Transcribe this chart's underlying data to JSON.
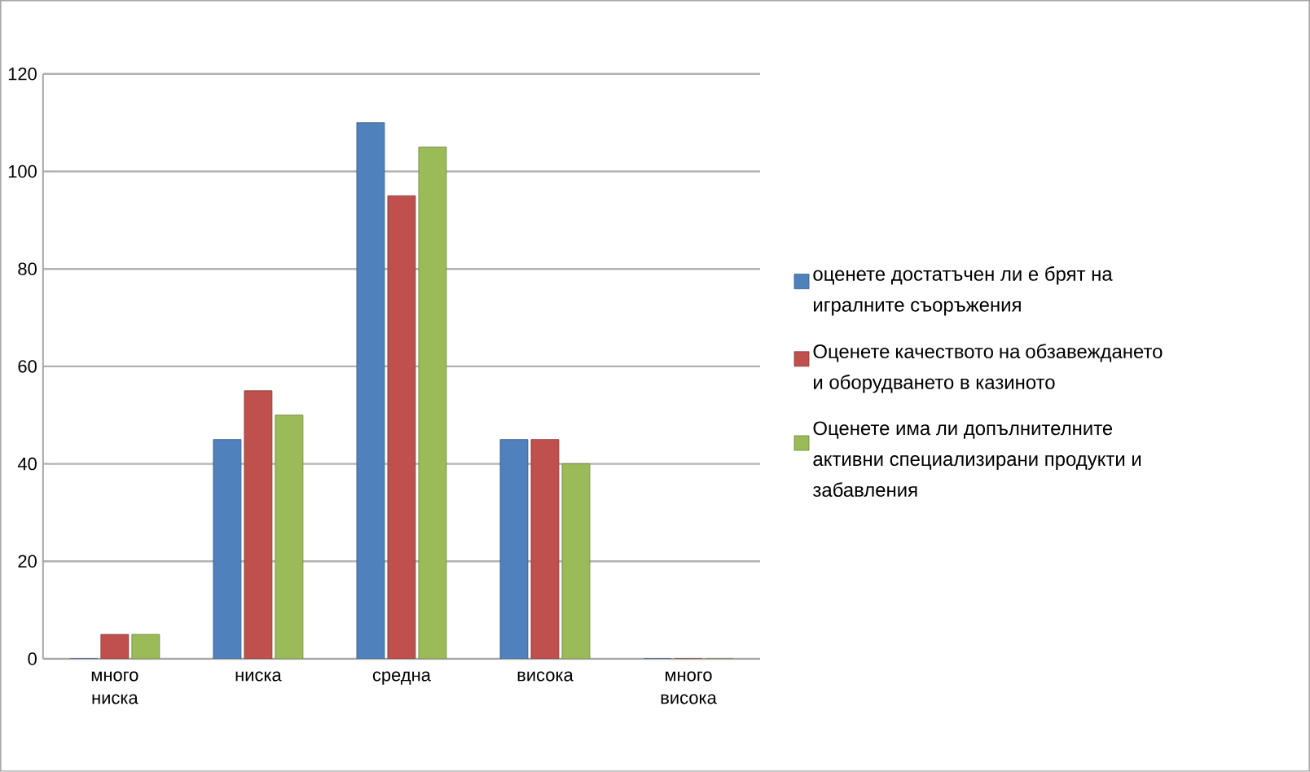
{
  "chart_data": {
    "type": "bar",
    "categories": [
      "много ниска",
      "ниска",
      "средна",
      "висока",
      "много висока"
    ],
    "series": [
      {
        "name": "оценете достатъчен ли е брят на игралните съоръжения",
        "color": "#4f81bd",
        "values": [
          0,
          45,
          110,
          45,
          0
        ]
      },
      {
        "name": "Оценете качеството на обзавеждането и оборудването в казиното",
        "color": "#c0504d",
        "values": [
          5,
          55,
          95,
          45,
          0
        ]
      },
      {
        "name": "Оценете има ли допълнителните активни специализирани продукти и забавления",
        "color": "#9bbb59",
        "values": [
          5,
          50,
          105,
          40,
          0
        ]
      }
    ],
    "ylim": [
      0,
      120
    ],
    "yticks": [
      0,
      20,
      40,
      60,
      80,
      100,
      120
    ],
    "grid": "y",
    "legend": "right"
  }
}
